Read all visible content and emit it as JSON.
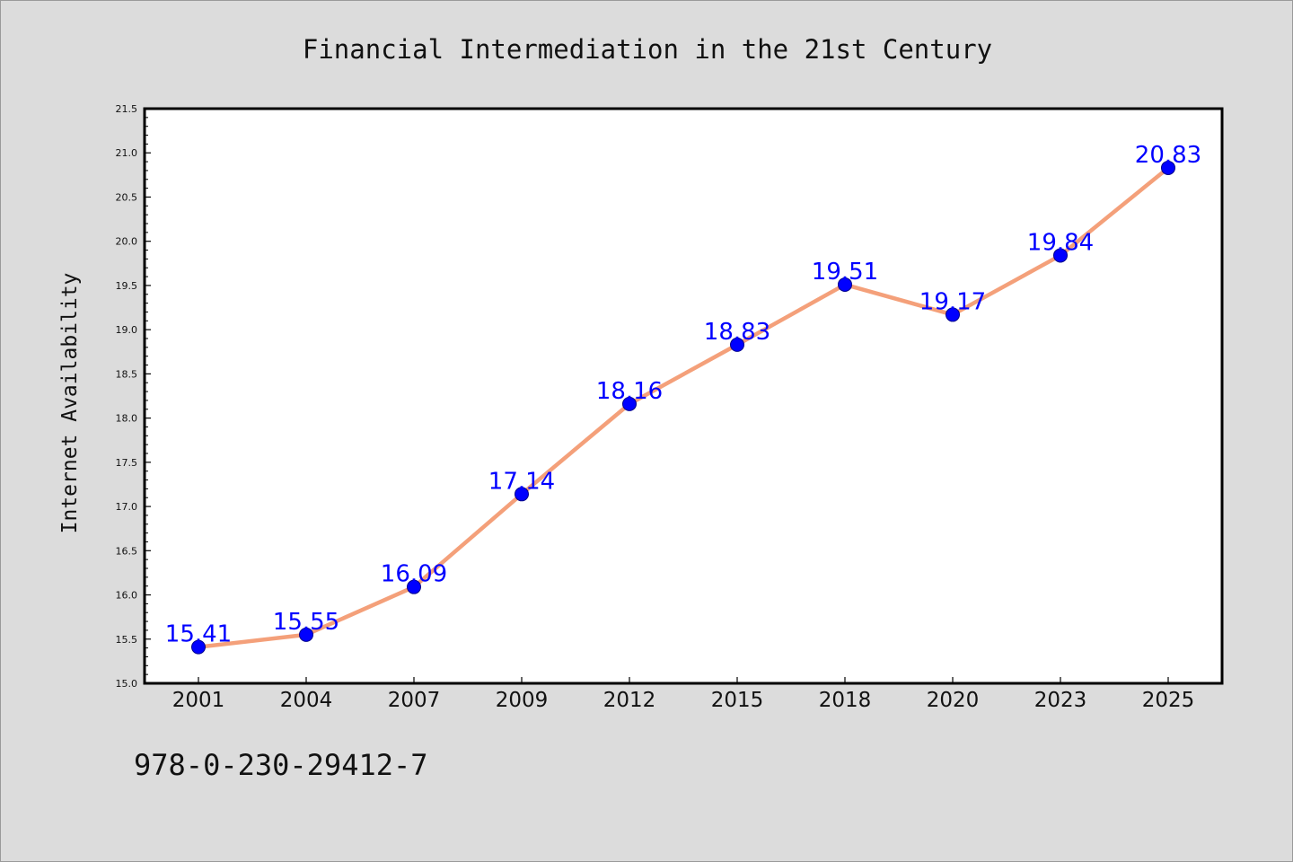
{
  "chart_data": {
    "type": "line",
    "title": "Financial Intermediation in the 21st Century",
    "xlabel": "",
    "ylabel": "Internet Availability",
    "categories": [
      "2001",
      "2004",
      "2007",
      "2009",
      "2012",
      "2015",
      "2018",
      "2020",
      "2023",
      "2025"
    ],
    "series": [
      {
        "values": [
          15.41,
          15.55,
          16.09,
          17.14,
          18.16,
          18.83,
          19.51,
          19.17,
          19.84,
          20.83
        ],
        "line_color": "#f4a07a",
        "marker_color": "#0000ff"
      }
    ],
    "data_label_color": "#0000ff",
    "ylim": [
      15.0,
      21.5
    ],
    "ytick_labels": [
      "15.0",
      "15.5",
      "16.0",
      "16.5",
      "17.0",
      "17.5",
      "18.0",
      "18.5",
      "19.0",
      "19.5",
      "20.0",
      "20.5",
      "21.0",
      "21.5"
    ],
    "grid": false,
    "legend": "none"
  },
  "footer": {
    "isbn": "978-0-230-29412-7"
  },
  "colors": {
    "figure_background": "#dcdcdc",
    "plot_background": "#ffffff",
    "axes_border": "#000000"
  }
}
